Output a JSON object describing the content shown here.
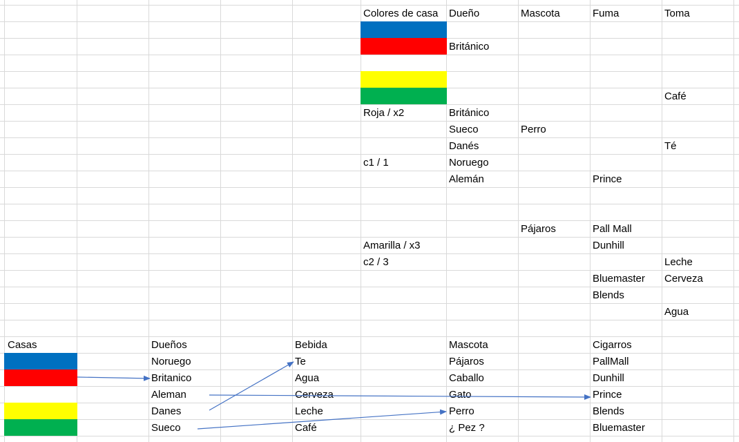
{
  "colors": {
    "blue": "#0070C0",
    "red": "#FF0000",
    "yellow": "#FFFF00",
    "green": "#00B050",
    "gridline": "#D9D9D9",
    "arrow": "#4472C4"
  },
  "top_table": {
    "headers": {
      "color": "Colores de casa",
      "owner": "Dueño",
      "pet": "Mascota",
      "smoke": "Fuma",
      "drink": "Toma"
    },
    "r2_owner": "Británico",
    "r5_drink": "Café",
    "r6_color": "Roja / x2",
    "r6_owner": "Británico",
    "r7_owner": "Sueco",
    "r7_pet": "Perro",
    "r8_owner": "Danés",
    "r8_drink": "Té",
    "r9_color": "c1 / 1",
    "r9_owner": "Noruego",
    "r10_owner": "Alemán",
    "r10_smoke": "Prince",
    "r13_pet": "Pájaros",
    "r13_smoke": "Pall Mall",
    "r14_color": "Amarilla / x3",
    "r14_smoke": "Dunhill",
    "r15_color": "c2 / 3",
    "r15_drink": "Leche",
    "r16_smoke": "Bluemaster",
    "r16_drink": "Cerveza",
    "r17_smoke": "Blends",
    "r18_drink": "Agua"
  },
  "bottom_table": {
    "headers": {
      "houses": "Casas",
      "owners": "Dueños",
      "drinks": "Bebida",
      "pets": "Mascota",
      "cigars": "Cigarros"
    },
    "owners": [
      "Noruego",
      "Britanico",
      "Aleman",
      "Danes",
      "Sueco"
    ],
    "drinks": [
      "Te",
      "Agua",
      "Cerveza",
      "Leche",
      "Café"
    ],
    "pets": [
      "Pájaros",
      "Caballo",
      "Gato",
      "Perro",
      "¿ Pez ?"
    ],
    "cigars": [
      "PallMall",
      "Dunhill",
      "Prince",
      "Blends",
      "Bluemaster"
    ]
  }
}
